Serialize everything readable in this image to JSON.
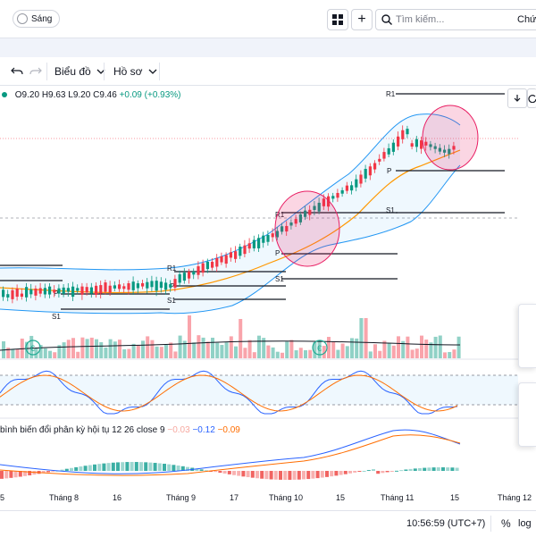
{
  "header": {
    "theme_label": "Sáng",
    "search_placeholder": "Tìm kiếm...",
    "right_text": "Chứ"
  },
  "toolbar": {
    "chart_menu": "Biểu đồ",
    "profile_menu": "Hồ sơ"
  },
  "legend": {
    "open": "O9.20",
    "high": "H9.63",
    "low": "L9.20",
    "close": "C9.46",
    "change": "+0.09 (+0.93%)"
  },
  "macd": {
    "title": "bình biến đổi phân kỳ hội tụ 12 26 close 9",
    "hist_value": "−0.03",
    "macd_value": "−0.12",
    "signal_value": "−0.09"
  },
  "pivot_labels": {
    "r1": "R1",
    "p": "P",
    "s1": "S1"
  },
  "time_axis": [
    "5",
    "Tháng 8",
    "16",
    "Tháng 9",
    "17",
    "Tháng 10",
    "15",
    "Tháng 11",
    "15",
    "Tháng 12"
  ],
  "status": {
    "clock": "10:56:59 (UTC+7)",
    "percent": "%",
    "log": "log"
  },
  "colors": {
    "up": "#089981",
    "down": "#f23645",
    "band": "#2196f3",
    "ma": "#ff9800",
    "highlight": "#e91e63"
  },
  "icons": [
    "undo-icon",
    "redo-icon",
    "grid-layout-icon",
    "plus-icon",
    "search-icon",
    "chevron-down-icon",
    "arrow-down-icon",
    "refresh-icon"
  ]
}
